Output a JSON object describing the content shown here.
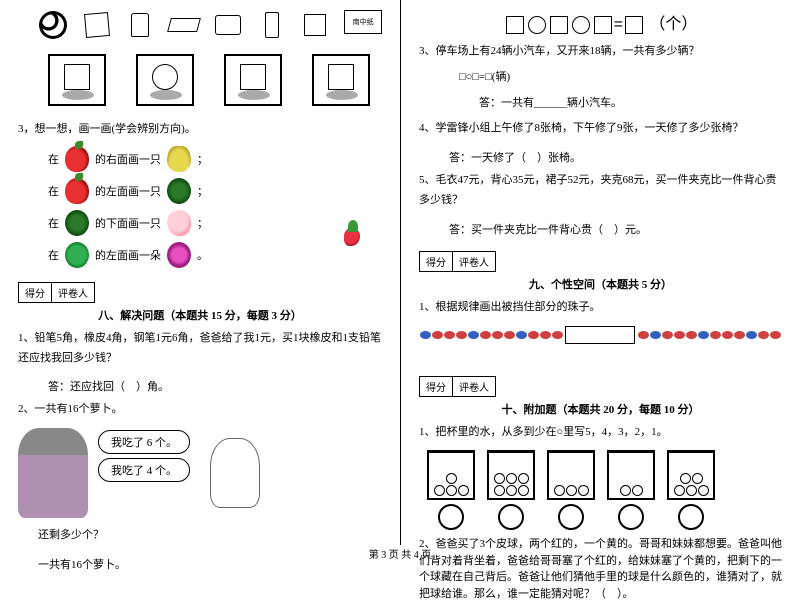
{
  "left": {
    "box_label": "南中纸",
    "q3_title": "3，想一想，画一画(学会辨别方向)。",
    "lines": [
      {
        "pre": "在",
        "post": "的右面画一只",
        "f1": "apple",
        "f2": "pear",
        "tail": "；"
      },
      {
        "pre": "在",
        "post": "的左面画一只",
        "f1": "apple",
        "f2": "melon",
        "tail": "；"
      },
      {
        "pre": "在",
        "post": "的下面画一只",
        "f1": "melon",
        "f2": "peach",
        "tail": "；"
      },
      {
        "pre": "在",
        "post": "的左面画一朵",
        "f1": "leaf",
        "f2": "flower",
        "tail": "。"
      }
    ],
    "score_a": "得分",
    "score_b": "评卷人",
    "sec8_title": "八、解决问题（本题共 15 分，每题 3 分）",
    "q1": "1、铅笔5角，橡皮4角，钢笔1元6角，爸爸给了我1元，买1块橡皮和1支铅笔还应找我回多少钱？",
    "a1": "答：还应找回（　）角。",
    "q2": "2、一共有16个萝卜。",
    "b1": "我吃了 6 个。",
    "b2": "我吃了 4 个。",
    "q2b": "还剩多少个？",
    "foot": "一共有16个萝卜。"
  },
  "right": {
    "unit": "（个）",
    "q3": "3、停车场上有24辆小汽车，又开来18辆，一共有多少辆？",
    "f3": "□○□=□(辆)",
    "a3": "答：一共有______辆小汽车。",
    "q4": "4、学雷锋小组上午修了8张椅，下午修了9张，一天修了多少张椅？",
    "a4": "答：一天修了（　）张椅。",
    "q5": "5、毛衣47元，背心35元，裙子52元，夹克68元，买一件夹克比一件背心贵多少钱？",
    "a5": "答：买一件夹克比一件背心贵（　）元。",
    "score_a": "得分",
    "score_b": "评卷人",
    "sec9_title": "九、个性空间（本题共 5 分）",
    "q9": "1、根据规律画出被挡住部分的珠子。",
    "sec10_title": "十、附加题（本题共 20 分，每题 10 分）",
    "q10_1": "1、把杯里的水，从多到少在○里写5，4，3，2，1。",
    "cups": [
      4,
      6,
      3,
      2,
      5
    ],
    "q10_2": "2、爸爸买了3个皮球，两个红的，一个黄的。哥哥和妹妹都想要。爸爸叫他们背对着背坐着，爸爸给哥哥塞了个红的，给妹妹塞了个黄的，把剩下的一个球藏在自己背后。爸爸让他们猜他手里的球是什么颜色的，谁猜对了，就把球给谁。那么，谁一定能猜对呢？（　）。"
  },
  "footer": "第 3 页  共 4 页"
}
